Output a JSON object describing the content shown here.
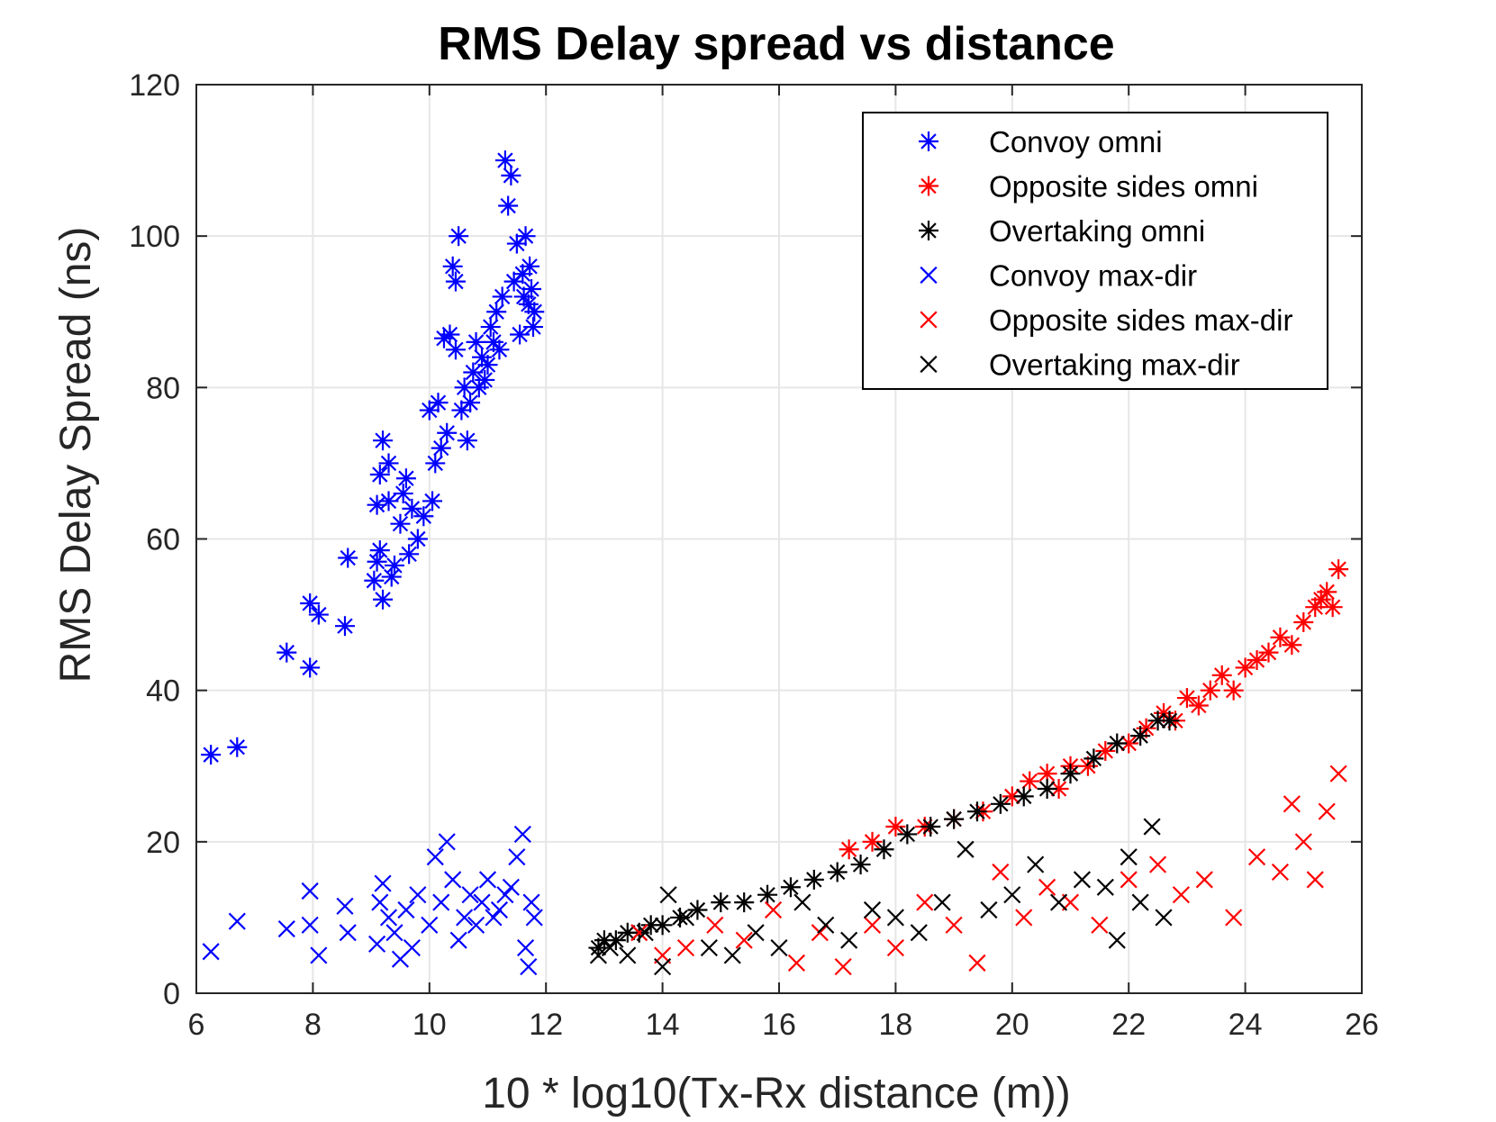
{
  "chart_data": {
    "type": "scatter",
    "title": "RMS Delay spread vs distance",
    "xlabel": "10 * log10(Tx-Rx distance (m))",
    "ylabel": "RMS Delay Spread (ns)",
    "xlim": [
      6,
      26
    ],
    "ylim": [
      0,
      120
    ],
    "xticks": [
      6,
      8,
      10,
      12,
      14,
      16,
      18,
      20,
      22,
      24,
      26
    ],
    "yticks": [
      0,
      20,
      40,
      60,
      80,
      100,
      120
    ],
    "grid": true,
    "legend_position": "top-right",
    "series": [
      {
        "name": "Convoy omni",
        "marker": "asterisk",
        "color": "#0000ff",
        "points": [
          [
            6.25,
            31.5
          ],
          [
            6.7,
            32.5
          ],
          [
            7.55,
            45
          ],
          [
            7.95,
            43
          ],
          [
            7.95,
            51.5
          ],
          [
            8.1,
            50
          ],
          [
            8.55,
            48.5
          ],
          [
            8.6,
            57.5
          ],
          [
            9.05,
            54.5
          ],
          [
            9.1,
            57
          ],
          [
            9.15,
            58.5
          ],
          [
            9.2,
            52
          ],
          [
            9.1,
            64.5
          ],
          [
            9.15,
            68.5
          ],
          [
            9.2,
            73
          ],
          [
            9.3,
            70
          ],
          [
            9.3,
            65
          ],
          [
            9.35,
            55
          ],
          [
            9.4,
            56.5
          ],
          [
            9.5,
            62
          ],
          [
            9.55,
            66
          ],
          [
            9.6,
            68
          ],
          [
            9.65,
            58
          ],
          [
            9.7,
            64
          ],
          [
            9.8,
            60
          ],
          [
            9.9,
            63
          ],
          [
            10.0,
            77
          ],
          [
            10.05,
            65
          ],
          [
            10.1,
            70
          ],
          [
            10.15,
            78
          ],
          [
            10.2,
            72
          ],
          [
            10.25,
            86.5
          ],
          [
            10.3,
            74
          ],
          [
            10.35,
            87
          ],
          [
            10.4,
            96
          ],
          [
            10.45,
            85
          ],
          [
            10.45,
            94
          ],
          [
            10.5,
            100
          ],
          [
            10.55,
            77
          ],
          [
            10.6,
            80
          ],
          [
            10.65,
            73
          ],
          [
            10.7,
            78
          ],
          [
            10.75,
            82
          ],
          [
            10.8,
            86
          ],
          [
            10.85,
            80
          ],
          [
            10.9,
            84
          ],
          [
            10.95,
            81
          ],
          [
            11.0,
            83
          ],
          [
            11.05,
            88
          ],
          [
            11.1,
            86
          ],
          [
            11.15,
            90
          ],
          [
            11.2,
            85
          ],
          [
            11.25,
            92
          ],
          [
            11.3,
            110
          ],
          [
            11.35,
            104
          ],
          [
            11.4,
            108
          ],
          [
            11.45,
            94
          ],
          [
            11.5,
            99
          ],
          [
            11.55,
            87
          ],
          [
            11.6,
            95
          ],
          [
            11.62,
            92
          ],
          [
            11.65,
            100
          ],
          [
            11.7,
            91
          ],
          [
            11.72,
            96
          ],
          [
            11.75,
            93
          ],
          [
            11.78,
            88
          ],
          [
            11.8,
            90
          ]
        ]
      },
      {
        "name": "Opposite sides omni",
        "marker": "asterisk",
        "color": "#ff0000",
        "points": [
          [
            17.2,
            19
          ],
          [
            17.6,
            20
          ],
          [
            18.0,
            22
          ],
          [
            18.5,
            22
          ],
          [
            19.0,
            23
          ],
          [
            19.5,
            24
          ],
          [
            20.0,
            26
          ],
          [
            20.3,
            28
          ],
          [
            20.6,
            29
          ],
          [
            20.8,
            27
          ],
          [
            21.0,
            30
          ],
          [
            21.3,
            30
          ],
          [
            21.6,
            32
          ],
          [
            22.0,
            33
          ],
          [
            22.3,
            35
          ],
          [
            22.6,
            37
          ],
          [
            22.8,
            36
          ],
          [
            23.0,
            39
          ],
          [
            23.2,
            38
          ],
          [
            23.4,
            40
          ],
          [
            23.6,
            42
          ],
          [
            23.8,
            40
          ],
          [
            24.0,
            43
          ],
          [
            24.2,
            44
          ],
          [
            24.4,
            45
          ],
          [
            24.6,
            47
          ],
          [
            24.8,
            46
          ],
          [
            25.0,
            49
          ],
          [
            25.2,
            51
          ],
          [
            25.3,
            52
          ],
          [
            25.4,
            53
          ],
          [
            25.5,
            51
          ],
          [
            25.6,
            56
          ]
        ]
      },
      {
        "name": "Overtaking omni",
        "marker": "asterisk",
        "color": "#000000",
        "points": [
          [
            12.9,
            6
          ],
          [
            13.0,
            7
          ],
          [
            13.2,
            7
          ],
          [
            13.4,
            8
          ],
          [
            13.6,
            8
          ],
          [
            13.8,
            9
          ],
          [
            14.0,
            9
          ],
          [
            14.3,
            10
          ],
          [
            14.6,
            11
          ],
          [
            15.0,
            12
          ],
          [
            15.4,
            12
          ],
          [
            15.8,
            13
          ],
          [
            16.2,
            14
          ],
          [
            16.6,
            15
          ],
          [
            17.0,
            16
          ],
          [
            17.4,
            17
          ],
          [
            17.8,
            19
          ],
          [
            18.2,
            21
          ],
          [
            18.6,
            22
          ],
          [
            19.0,
            23
          ],
          [
            19.4,
            24
          ],
          [
            19.8,
            25
          ],
          [
            20.2,
            26
          ],
          [
            20.6,
            27
          ],
          [
            21.0,
            29
          ],
          [
            21.4,
            31
          ],
          [
            21.8,
            33
          ],
          [
            22.2,
            34
          ],
          [
            22.5,
            36
          ],
          [
            22.7,
            36
          ]
        ]
      },
      {
        "name": "Convoy max-dir",
        "marker": "x",
        "color": "#0000ff",
        "points": [
          [
            6.25,
            5.5
          ],
          [
            6.7,
            9.5
          ],
          [
            7.55,
            8.5
          ],
          [
            7.95,
            13.5
          ],
          [
            7.95,
            9
          ],
          [
            8.1,
            5
          ],
          [
            8.55,
            11.5
          ],
          [
            8.6,
            8
          ],
          [
            9.1,
            6.5
          ],
          [
            9.15,
            12
          ],
          [
            9.2,
            14.5
          ],
          [
            9.3,
            10
          ],
          [
            9.4,
            8
          ],
          [
            9.5,
            4.5
          ],
          [
            9.6,
            11
          ],
          [
            9.7,
            6
          ],
          [
            9.8,
            13
          ],
          [
            10.0,
            9
          ],
          [
            10.1,
            18
          ],
          [
            10.2,
            12
          ],
          [
            10.3,
            20
          ],
          [
            10.4,
            15
          ],
          [
            10.5,
            7
          ],
          [
            10.6,
            10
          ],
          [
            10.7,
            13
          ],
          [
            10.8,
            9
          ],
          [
            10.9,
            12
          ],
          [
            11.0,
            15
          ],
          [
            11.1,
            10
          ],
          [
            11.2,
            11
          ],
          [
            11.3,
            13
          ],
          [
            11.4,
            14
          ],
          [
            11.5,
            18
          ],
          [
            11.6,
            21
          ],
          [
            11.65,
            6
          ],
          [
            11.7,
            3.5
          ],
          [
            11.75,
            12
          ],
          [
            11.8,
            10
          ]
        ]
      },
      {
        "name": "Opposite sides max-dir",
        "marker": "x",
        "color": "#ff0000",
        "points": [
          [
            13.6,
            8
          ],
          [
            14.0,
            5
          ],
          [
            14.4,
            6
          ],
          [
            14.9,
            9
          ],
          [
            15.4,
            7
          ],
          [
            15.9,
            11
          ],
          [
            16.3,
            4
          ],
          [
            16.7,
            8
          ],
          [
            17.1,
            3.5
          ],
          [
            17.6,
            9
          ],
          [
            18.0,
            6
          ],
          [
            18.5,
            12
          ],
          [
            19.0,
            9
          ],
          [
            19.4,
            4
          ],
          [
            19.8,
            16
          ],
          [
            20.2,
            10
          ],
          [
            20.6,
            14
          ],
          [
            21.0,
            12
          ],
          [
            21.5,
            9
          ],
          [
            22.0,
            15
          ],
          [
            22.5,
            17
          ],
          [
            22.9,
            13
          ],
          [
            23.3,
            15
          ],
          [
            23.8,
            10
          ],
          [
            24.2,
            18
          ],
          [
            24.6,
            16
          ],
          [
            24.8,
            25
          ],
          [
            25.0,
            20
          ],
          [
            25.2,
            15
          ],
          [
            25.4,
            24
          ],
          [
            25.6,
            29
          ]
        ]
      },
      {
        "name": "Overtaking max-dir",
        "marker": "x",
        "color": "#000000",
        "points": [
          [
            12.9,
            5
          ],
          [
            13.1,
            6
          ],
          [
            13.4,
            5
          ],
          [
            13.7,
            8
          ],
          [
            14.0,
            3.5
          ],
          [
            14.1,
            13
          ],
          [
            14.4,
            10
          ],
          [
            14.8,
            6
          ],
          [
            15.2,
            5
          ],
          [
            15.6,
            8
          ],
          [
            16.0,
            6
          ],
          [
            16.4,
            12
          ],
          [
            16.8,
            9
          ],
          [
            17.2,
            7
          ],
          [
            17.6,
            11
          ],
          [
            18.0,
            10
          ],
          [
            18.4,
            8
          ],
          [
            18.8,
            12
          ],
          [
            19.2,
            19
          ],
          [
            19.6,
            11
          ],
          [
            20.0,
            13
          ],
          [
            20.4,
            17
          ],
          [
            20.8,
            12
          ],
          [
            21.2,
            15
          ],
          [
            21.6,
            14
          ],
          [
            21.8,
            7
          ],
          [
            22.0,
            18
          ],
          [
            22.2,
            12
          ],
          [
            22.4,
            22
          ],
          [
            22.6,
            10
          ]
        ]
      }
    ]
  }
}
